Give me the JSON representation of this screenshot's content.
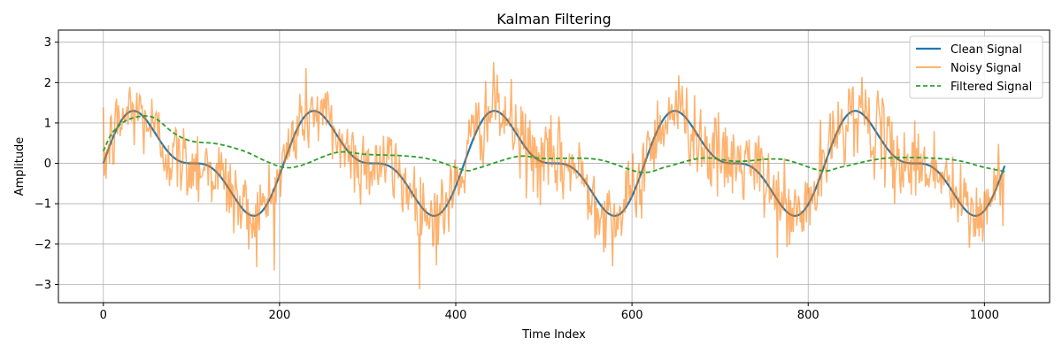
{
  "chart_data": {
    "type": "line",
    "title": "Kalman Filtering",
    "xlabel": "Time Index",
    "ylabel": "Amplitude",
    "xlim": [
      -51,
      1074
    ],
    "ylim": [
      -3.45,
      3.3
    ],
    "xticks": [
      0,
      200,
      400,
      600,
      800,
      1000
    ],
    "yticks": [
      -3,
      -2,
      -1,
      0,
      1,
      2,
      3
    ],
    "grid": true,
    "legend_position": "top-right",
    "n_points": 1024,
    "series": [
      {
        "name": "Clean Signal",
        "color": "#1f77b4",
        "style": "solid",
        "definition": "sin(2*pi*5*t) + 0.5*sin(2*pi*10*t), t in [0, 1), 1024 samples",
        "sample_x": [
          0,
          32,
          83,
          122,
          174,
          236,
          287,
          327,
          378,
          440
        ],
        "sample_y": [
          0.0,
          1.76,
          -0.36,
          0.36,
          -1.76,
          1.76,
          -0.36,
          0.36,
          -1.76,
          1.76
        ]
      },
      {
        "name": "Noisy Signal",
        "color": "#ff7f0e",
        "style": "solid",
        "definition": "Clean Signal + Gaussian noise (sigma ~ 0.5)",
        "y_range": [
          -3.15,
          2.95
        ]
      },
      {
        "name": "Filtered Signal",
        "color": "#2ca02c",
        "style": "dashed",
        "points": [
          [
            0,
            0.3
          ],
          [
            10,
            0.75
          ],
          [
            25,
            1.05
          ],
          [
            45,
            1.17
          ],
          [
            60,
            1.1
          ],
          [
            80,
            0.75
          ],
          [
            100,
            0.55
          ],
          [
            130,
            0.48
          ],
          [
            160,
            0.3
          ],
          [
            185,
            0.05
          ],
          [
            205,
            -0.1
          ],
          [
            225,
            -0.05
          ],
          [
            265,
            0.27
          ],
          [
            300,
            0.22
          ],
          [
            345,
            0.18
          ],
          [
            375,
            0.08
          ],
          [
            410,
            -0.17
          ],
          [
            425,
            -0.12
          ],
          [
            470,
            0.17
          ],
          [
            500,
            0.12
          ],
          [
            560,
            0.1
          ],
          [
            610,
            -0.22
          ],
          [
            640,
            -0.08
          ],
          [
            680,
            0.13
          ],
          [
            720,
            0.05
          ],
          [
            770,
            0.1
          ],
          [
            815,
            -0.18
          ],
          [
            840,
            -0.08
          ],
          [
            890,
            0.13
          ],
          [
            960,
            0.1
          ],
          [
            1000,
            -0.1
          ],
          [
            1023,
            -0.2
          ]
        ]
      }
    ]
  }
}
